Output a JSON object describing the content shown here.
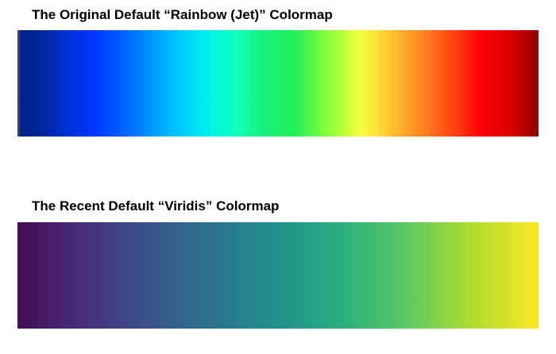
{
  "colormaps": [
    {
      "title": "The Original Default “Rainbow (Jet)” Colormap",
      "name": "jet",
      "stops": [
        "#00208f",
        "#0038ff",
        "#00b8ff",
        "#00eef0",
        "#10ffc0",
        "#20ee58",
        "#90ff38",
        "#f8ff40",
        "#ffc030",
        "#ff8020",
        "#ff0008",
        "#900000"
      ]
    },
    {
      "title": "The Recent Default “Viridis” Colormap",
      "name": "viridis",
      "stops": [
        "#440c54",
        "#472d7b",
        "#3b528b",
        "#2c728e",
        "#21918c",
        "#28ae80",
        "#5ec962",
        "#addc30",
        "#fde725"
      ]
    }
  ]
}
